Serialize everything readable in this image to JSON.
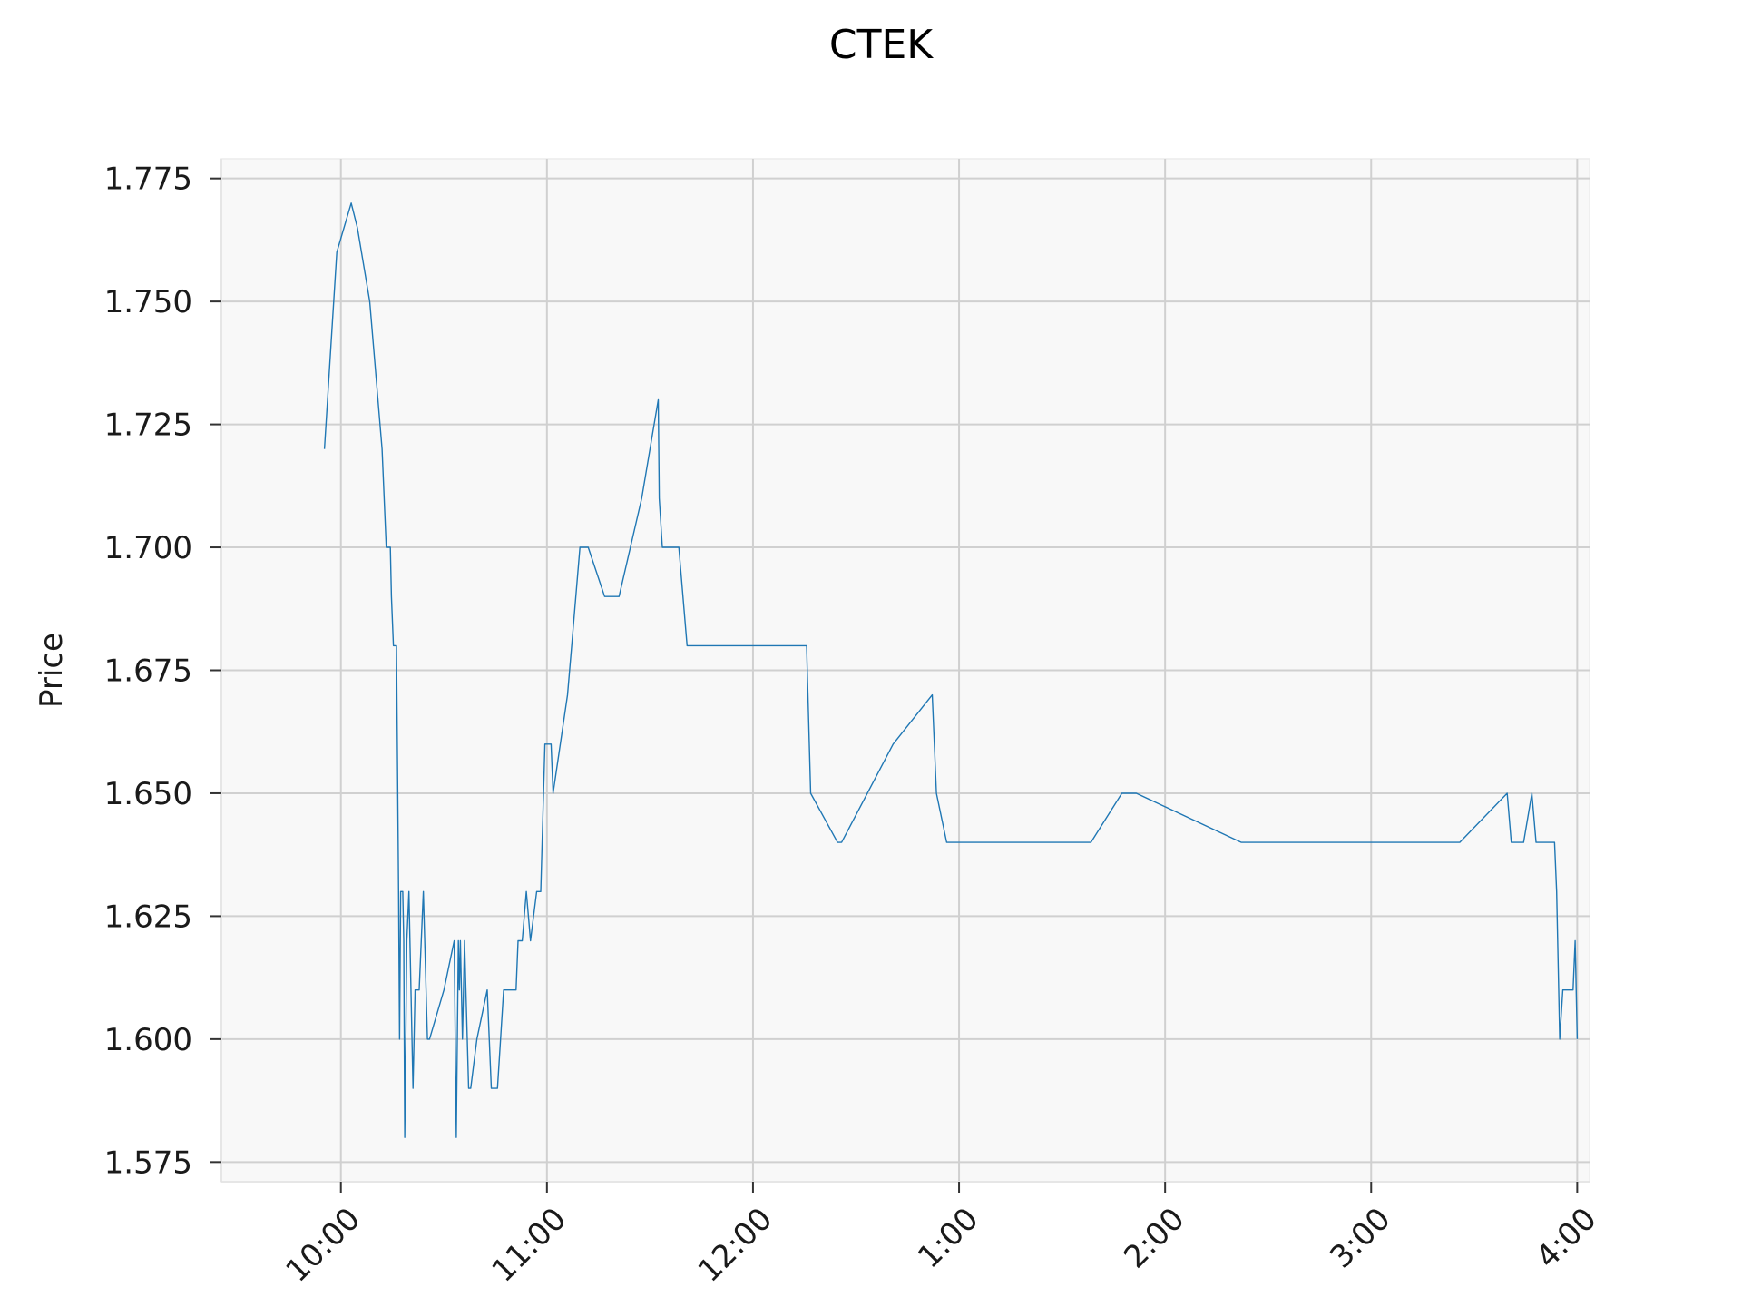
{
  "chart_data": {
    "type": "line",
    "title": "CTEK",
    "xlabel": "",
    "ylabel": "Price",
    "x_unit": "time of day",
    "x_ticks": [
      {
        "label": "10:00",
        "hour": 10.0
      },
      {
        "label": "11:00",
        "hour": 11.0
      },
      {
        "label": "12:00",
        "hour": 12.0
      },
      {
        "label": "1:00",
        "hour": 13.0
      },
      {
        "label": "2:00",
        "hour": 14.0
      },
      {
        "label": "3:00",
        "hour": 15.0
      },
      {
        "label": "4:00",
        "hour": 16.0
      }
    ],
    "y_ticks": [
      "1.575",
      "1.600",
      "1.625",
      "1.650",
      "1.675",
      "1.700",
      "1.725",
      "1.750",
      "1.775"
    ],
    "xlim": [
      9.42,
      16.06
    ],
    "ylim": [
      1.571,
      1.779
    ],
    "grid": true,
    "colors": {
      "line": "#1f77b4",
      "plot_background": "#f8f8f8",
      "grid": "#d0d0d0"
    },
    "series": [
      {
        "name": "",
        "x": [
          9.92,
          9.98,
          10.05,
          10.08,
          10.14,
          10.2,
          10.22,
          10.24,
          10.245,
          10.255,
          10.27,
          10.28,
          10.285,
          10.29,
          10.3,
          10.305,
          10.31,
          10.32,
          10.33,
          10.35,
          10.36,
          10.38,
          10.4,
          10.42,
          10.43,
          10.5,
          10.55,
          10.56,
          10.57,
          10.575,
          10.58,
          10.59,
          10.6,
          10.62,
          10.63,
          10.66,
          10.71,
          10.73,
          10.76,
          10.79,
          10.85,
          10.86,
          10.88,
          10.9,
          10.92,
          10.95,
          10.97,
          10.99,
          11.02,
          11.03,
          11.1,
          11.12,
          11.16,
          11.2,
          11.28,
          11.35,
          11.46,
          11.54,
          11.545,
          11.56,
          11.64,
          11.68,
          11.73,
          12.26,
          12.28,
          12.41,
          12.43,
          12.68,
          12.87,
          12.89,
          12.94,
          12.96,
          13.64,
          13.79,
          13.86,
          14.37,
          15.43,
          15.66,
          15.68,
          15.74,
          15.78,
          15.8,
          15.89,
          15.9,
          15.915,
          15.93,
          15.98,
          15.99,
          16.0
        ],
        "values": [
          1.72,
          1.76,
          1.77,
          1.765,
          1.75,
          1.72,
          1.7,
          1.7,
          1.69,
          1.68,
          1.68,
          1.63,
          1.6,
          1.63,
          1.63,
          1.62,
          1.58,
          1.62,
          1.63,
          1.59,
          1.61,
          1.61,
          1.63,
          1.6,
          1.6,
          1.61,
          1.62,
          1.58,
          1.62,
          1.61,
          1.62,
          1.6,
          1.62,
          1.59,
          1.59,
          1.6,
          1.61,
          1.59,
          1.59,
          1.61,
          1.61,
          1.62,
          1.62,
          1.63,
          1.62,
          1.63,
          1.63,
          1.66,
          1.66,
          1.65,
          1.67,
          1.68,
          1.7,
          1.7,
          1.69,
          1.69,
          1.71,
          1.73,
          1.71,
          1.7,
          1.7,
          1.68,
          1.68,
          1.68,
          1.65,
          1.64,
          1.64,
          1.66,
          1.67,
          1.65,
          1.64,
          1.64,
          1.64,
          1.65,
          1.65,
          1.64,
          1.64,
          1.65,
          1.64,
          1.64,
          1.65,
          1.64,
          1.64,
          1.63,
          1.6,
          1.61,
          1.61,
          1.62,
          1.6
        ]
      }
    ]
  }
}
